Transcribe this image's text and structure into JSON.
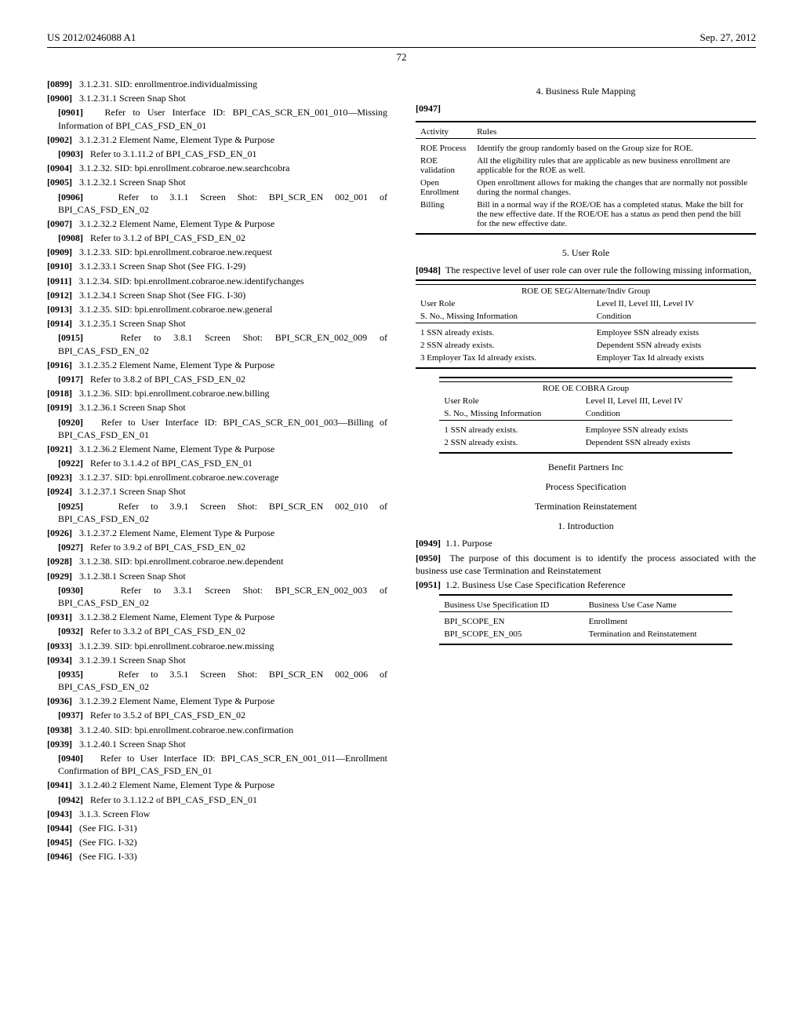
{
  "header": {
    "left": "US 2012/0246088 A1",
    "right": "Sep. 27, 2012"
  },
  "pagenum": "72",
  "left_col": [
    {
      "cls": "para",
      "num": "[0899]",
      "text": "3.1.2.31. SID: enrollmentroe.individualmissing"
    },
    {
      "cls": "para",
      "num": "[0900]",
      "text": "3.1.2.31.1 Screen Snap Shot"
    },
    {
      "cls": "para ind1",
      "num": "[0901]",
      "text": "Refer to User Interface ID: BPI_CAS_SCR_EN_001_010—Missing Information of BPI_CAS_FSD_EN_01"
    },
    {
      "cls": "para",
      "num": "[0902]",
      "text": "3.1.2.31.2 Element Name, Element Type & Purpose"
    },
    {
      "cls": "para ind1",
      "num": "[0903]",
      "text": "Refer to 3.1.11.2 of BPI_CAS_FSD_EN_01"
    },
    {
      "cls": "para",
      "num": "[0904]",
      "text": "3.1.2.32. SID: bpi.enrollment.cobraroe.new.searchcobra"
    },
    {
      "cls": "para",
      "num": "[0905]",
      "text": "3.1.2.32.1 Screen Snap Shot"
    },
    {
      "cls": "para ind1",
      "num": "[0906]",
      "text": "Refer to 3.1.1 Screen Shot: BPI_SCR_EN 002_001 of BPI_CAS_FSD_EN_02"
    },
    {
      "cls": "para",
      "num": "[0907]",
      "text": "3.1.2.32.2 Element Name, Element Type & Purpose"
    },
    {
      "cls": "para ind1",
      "num": "[0908]",
      "text": "Refer to 3.1.2 of BPI_CAS_FSD_EN_02"
    },
    {
      "cls": "para",
      "num": "[0909]",
      "text": "3.1.2.33. SID: bpi.enrollment.cobraroe.new.request"
    },
    {
      "cls": "para",
      "num": "[0910]",
      "text": "3.1.2.33.1 Screen Snap Shot (See FIG. I-29)"
    },
    {
      "cls": "para",
      "num": "[0911]",
      "text": "3.1.2.34. SID: bpi.enrollment.cobraroe.new.identifychanges"
    },
    {
      "cls": "para",
      "num": "[0912]",
      "text": "3.1.2.34.1 Screen Snap Shot (See FIG. I-30)"
    },
    {
      "cls": "para",
      "num": "[0913]",
      "text": "3.1.2.35. SID: bpi.enrollment.cobraroe.new.general"
    },
    {
      "cls": "para",
      "num": "[0914]",
      "text": "3.1.2.35.1 Screen Snap Shot"
    },
    {
      "cls": "para ind1",
      "num": "[0915]",
      "text": "Refer to 3.8.1 Screen Shot: BPI_SCR_EN_002_009 of BPI_CAS_FSD_EN_02"
    },
    {
      "cls": "para",
      "num": "[0916]",
      "text": "3.1.2.35.2 Element Name, Element Type & Purpose"
    },
    {
      "cls": "para ind1",
      "num": "[0917]",
      "text": "Refer to 3.8.2 of BPI_CAS_FSD_EN_02"
    },
    {
      "cls": "para",
      "num": "[0918]",
      "text": "3.1.2.36. SID: bpi.enrollment.cobraroe.new.billing"
    },
    {
      "cls": "para",
      "num": "[0919]",
      "text": "3.1.2.36.1 Screen Snap Shot"
    },
    {
      "cls": "para ind1",
      "num": "[0920]",
      "text": "Refer to User Interface ID: BPI_CAS_SCR_EN_001_003—Billing of BPI_CAS_FSD_EN_01"
    },
    {
      "cls": "para",
      "num": "[0921]",
      "text": "3.1.2.36.2 Element Name, Element Type & Purpose"
    },
    {
      "cls": "para ind1",
      "num": "[0922]",
      "text": "Refer to 3.1.4.2 of BPI_CAS_FSD_EN_01"
    },
    {
      "cls": "para",
      "num": "[0923]",
      "text": "3.1.2.37. SID: bpi.enrollment.cobraroe.new.coverage"
    },
    {
      "cls": "para",
      "num": "[0924]",
      "text": "3.1.2.37.1 Screen Snap Shot"
    },
    {
      "cls": "para ind1",
      "num": "[0925]",
      "text": "Refer to 3.9.1 Screen Shot: BPI_SCR_EN 002_010 of BPI_CAS_FSD_EN_02"
    },
    {
      "cls": "para",
      "num": "[0926]",
      "text": "3.1.2.37.2 Element Name, Element Type & Purpose"
    },
    {
      "cls": "para ind1",
      "num": "[0927]",
      "text": "Refer to 3.9.2 of BPI_CAS_FSD_EN_02"
    },
    {
      "cls": "para",
      "num": "[0928]",
      "text": "3.1.2.38. SID: bpi.enrollment.cobraroe.new.dependent"
    },
    {
      "cls": "para",
      "num": "[0929]",
      "text": "3.1.2.38.1 Screen Snap Shot"
    },
    {
      "cls": "para ind1",
      "num": "[0930]",
      "text": "Refer to 3.3.1 Screen Shot: BPI_SCR_EN_002_003 of BPI_CAS_FSD_EN_02"
    },
    {
      "cls": "para",
      "num": "[0931]",
      "text": "3.1.2.38.2 Element Name, Element Type & Purpose"
    },
    {
      "cls": "para ind1",
      "num": "[0932]",
      "text": "Refer to 3.3.2 of BPI_CAS_FSD_EN_02"
    },
    {
      "cls": "para",
      "num": "[0933]",
      "text": "3.1.2.39. SID: bpi.enrollment.cobraroe.new.missing"
    },
    {
      "cls": "para",
      "num": "[0934]",
      "text": "3.1.2.39.1 Screen Snap Shot"
    },
    {
      "cls": "para ind1",
      "num": "[0935]",
      "text": "Refer to 3.5.1 Screen Shot: BPI_SCR_EN 002_006 of BPI_CAS_FSD_EN_02"
    },
    {
      "cls": "para",
      "num": "[0936]",
      "text": "3.1.2.39.2 Element Name, Element Type & Purpose"
    },
    {
      "cls": "para ind1",
      "num": "[0937]",
      "text": "Refer to 3.5.2 of BPI_CAS_FSD_EN_02"
    },
    {
      "cls": "para",
      "num": "[0938]",
      "text": "3.1.2.40. SID: bpi.enrollment.cobraroe.new.confirmation"
    },
    {
      "cls": "para",
      "num": "[0939]",
      "text": "3.1.2.40.1 Screen Snap Shot"
    },
    {
      "cls": "para ind1",
      "num": "[0940]",
      "text": "Refer to User Interface ID: BPI_CAS_SCR_EN_001_011—Enrollment Confirmation of BPI_CAS_FSD_EN_01"
    },
    {
      "cls": "para",
      "num": "[0941]",
      "text": "3.1.2.40.2 Element Name, Element Type & Purpose"
    },
    {
      "cls": "para ind1",
      "num": "[0942]",
      "text": "Refer to 3.1.12.2 of BPI_CAS_FSD_EN_01"
    },
    {
      "cls": "para",
      "num": "[0943]",
      "text": "3.1.3. Screen Flow"
    },
    {
      "cls": "para",
      "num": "[0944]",
      "text": "(See FIG. I-31)"
    },
    {
      "cls": "para",
      "num": "[0945]",
      "text": "(See FIG. I-32)"
    },
    {
      "cls": "para",
      "num": "[0946]",
      "text": "(See FIG. I-33)"
    }
  ],
  "right": {
    "h1": "4. Business Rule Mapping",
    "n1": "[0947]",
    "activity_table": {
      "headers": [
        "Activity",
        "Rules"
      ],
      "rows": [
        [
          "ROE Process",
          "Identify the group randomly based on the Group size for ROE."
        ],
        [
          "ROE validation",
          "All the eligibility rules that are applicable as new business enrollment are applicable for the ROE as well."
        ],
        [
          "Open Enrollment",
          "Open enrollment allows for making the changes that are normally not possible during the normal changes."
        ],
        [
          "Billing",
          "Bill in a normal way if the ROE/OE has a completed status. Make the bill for the new effective date.\nIf the ROE/OE has a status as pend then pend the bill for the new effective date."
        ]
      ]
    },
    "h2": "5. User Role",
    "n2": "[0948]",
    "r2": "The respective level of user role can over rule the following missing information,",
    "table_seg": {
      "title": "ROE OE SEG/Alternate/Indiv Group",
      "h1": "User Role",
      "h2": "Level II, Level III, Level IV",
      "s1": "S. No., Missing Information",
      "s2": "Condition",
      "rows": [
        [
          "1 SSN already exists.",
          "Employee SSN already exists"
        ],
        [
          "2 SSN already exists.",
          "Dependent SSN already exists"
        ],
        [
          "3 Employer Tax Id already exists.",
          "Employer Tax Id already exists"
        ]
      ]
    },
    "table_cobra": {
      "title": "ROE OE COBRA Group",
      "h1": "User Role",
      "h2": "Level II, Level III, Level IV",
      "s1": "S. No., Missing Information",
      "s2": "Condition",
      "rows": [
        [
          "1 SSN already exists.",
          "Employee SSN already exists"
        ],
        [
          "2 SSN already exists.",
          "Dependent SSN already exists"
        ]
      ]
    },
    "bp": "Benefit Partners Inc",
    "ps": "Process Specification",
    "tr": "Termination Reinstatement",
    "intro": "1. Introduction",
    "n3": "[0949]",
    "r3": "1.1. Purpose",
    "n4": "[0950]",
    "r4": "The purpose of this document is to identify the process associated with the business use case Termination and Reinstatement",
    "n5": "[0951]",
    "r5": "1.2. Business Use Case Specification Reference",
    "table_bus": {
      "headers": [
        "Business Use Specification ID",
        "Business Use Case Name"
      ],
      "rows": [
        [
          "BPI_SCOPE_EN",
          "Enrollment"
        ],
        [
          "BPI_SCOPE_EN_005",
          "Termination and Reinstatement"
        ]
      ]
    }
  }
}
